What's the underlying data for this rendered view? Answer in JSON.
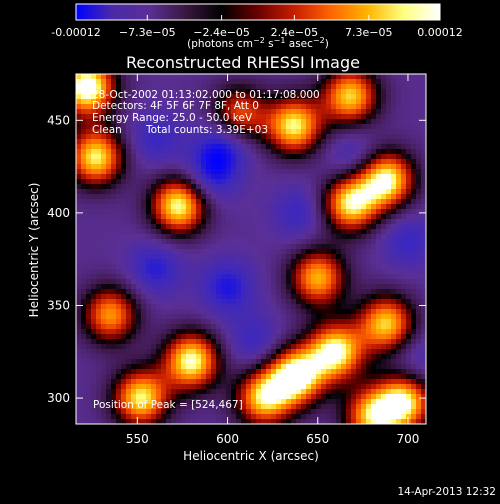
{
  "chart_data": {
    "type": "heatmap",
    "title": "Reconstructed RHESSI Image",
    "xlabel": "Heliocentric X (arcsec)",
    "ylabel": "Heliocentric Y (arcsec)",
    "x_ticks": [
      "550",
      "600",
      "650",
      "700"
    ],
    "x_tick_values": [
      550,
      600,
      650,
      700
    ],
    "y_ticks": [
      "300",
      "350",
      "400",
      "450"
    ],
    "y_tick_values": [
      300,
      350,
      400,
      450
    ],
    "xlim": [
      516,
      710
    ],
    "ylim": [
      286,
      475
    ],
    "colorbar": {
      "ticks": [
        "-0.00012",
        "−7.3e−05",
        "−2.4e−05",
        "2.4e−05",
        "7.3e−05",
        "0.00012"
      ],
      "tick_values": [
        -0.00012,
        -7.3e-05,
        -2.4e-05,
        2.4e-05,
        7.3e-05,
        0.00012
      ],
      "range": [
        -0.00012,
        0.00012
      ],
      "units_main": "(photons cm",
      "units_exp1": "−2",
      "units_mid": " s",
      "units_exp2": "−1",
      "units_tail": " asec",
      "units_exp3": "−2",
      "units_close": ")",
      "colors": [
        "#0000ff",
        "#4a2aa8",
        "#5a2f96",
        "#3a1840",
        "#000000",
        "#6a0000",
        "#c81e00",
        "#ff6400",
        "#ffb400",
        "#ffff80",
        "#ffffff"
      ]
    },
    "annotations": {
      "time_range": "28-Oct-2002 01:13:02.000 to 01:17:08.000",
      "detectors": "Detectors: 4F 5F 6F 7F 8F, Att 0",
      "energy": "Energy Range: 25.0 - 50.0 keV",
      "algorithm": "Clean",
      "counts": "Total counts: 3.39E+03",
      "peak": "Position of Peak = [524,467]"
    },
    "peak_position": [
      524,
      467
    ],
    "bright_sources": [
      {
        "x": 522,
        "y": 468,
        "level": 1.0
      },
      {
        "x": 527,
        "y": 430,
        "level": 0.85
      },
      {
        "x": 573,
        "y": 404,
        "level": 0.9
      },
      {
        "x": 606,
        "y": 452,
        "level": 0.7
      },
      {
        "x": 637,
        "y": 447,
        "level": 0.85
      },
      {
        "x": 668,
        "y": 463,
        "level": 0.8
      },
      {
        "x": 688,
        "y": 418,
        "level": 0.9
      },
      {
        "x": 668,
        "y": 405,
        "level": 0.85
      },
      {
        "x": 650,
        "y": 365,
        "level": 0.75
      },
      {
        "x": 660,
        "y": 325,
        "level": 0.9
      },
      {
        "x": 688,
        "y": 340,
        "level": 0.8
      },
      {
        "x": 638,
        "y": 312,
        "level": 0.95
      },
      {
        "x": 620,
        "y": 300,
        "level": 0.8
      },
      {
        "x": 580,
        "y": 320,
        "level": 0.9
      },
      {
        "x": 552,
        "y": 300,
        "level": 0.85
      },
      {
        "x": 535,
        "y": 345,
        "level": 0.7
      },
      {
        "x": 698,
        "y": 298,
        "level": 0.85
      },
      {
        "x": 680,
        "y": 290,
        "level": 0.75
      }
    ],
    "dim_regions": [
      {
        "x": 600,
        "y": 440,
        "level": -0.9
      },
      {
        "x": 590,
        "y": 420,
        "level": -0.7
      },
      {
        "x": 560,
        "y": 370,
        "level": -0.6
      },
      {
        "x": 600,
        "y": 360,
        "level": -0.65
      },
      {
        "x": 640,
        "y": 400,
        "level": -0.5
      },
      {
        "x": 670,
        "y": 430,
        "level": -0.5
      },
      {
        "x": 560,
        "y": 440,
        "level": -0.5
      },
      {
        "x": 700,
        "y": 385,
        "level": -0.5
      },
      {
        "x": 615,
        "y": 330,
        "level": -0.5
      },
      {
        "x": 705,
        "y": 320,
        "level": -0.4
      }
    ]
  },
  "footer": {
    "timestamp": "14-Apr-2013 12:32"
  }
}
